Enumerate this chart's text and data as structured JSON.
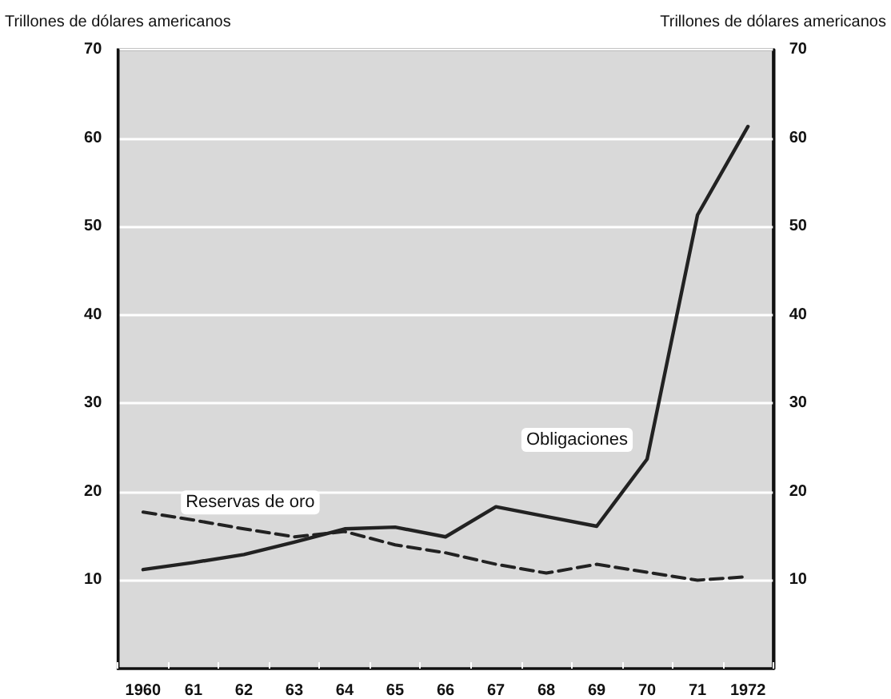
{
  "chart_data": {
    "type": "line",
    "ylabel": "Trillones de dólares americanos",
    "y2label": "Trillones de dólares americanos",
    "categories": [
      "1960",
      "61",
      "62",
      "63",
      "64",
      "65",
      "66",
      "67",
      "68",
      "69",
      "70",
      "71",
      "1972"
    ],
    "series": [
      {
        "name": "Obligaciones",
        "color": "#222222",
        "line_style": "solid",
        "values": [
          11.2,
          12,
          12.9,
          14.3,
          15.8,
          16,
          14.9,
          18.3,
          17.2,
          16.1,
          23.7,
          51.3,
          61.3
        ]
      },
      {
        "name": "Reservas de oro",
        "color": "#222222",
        "line_style": "dashed",
        "values": [
          17.7,
          16.8,
          15.8,
          14.9,
          15.5,
          14,
          13.1,
          11.8,
          10.8,
          11.8,
          10.9,
          10,
          10.4
        ]
      }
    ],
    "ylim": [
      0,
      70
    ],
    "yticks": [
      10,
      20,
      30,
      40,
      50,
      60,
      70
    ],
    "y2lim": [
      0,
      70
    ],
    "y2ticks": [
      10,
      20,
      30,
      40,
      50,
      60,
      70
    ],
    "grid": "y",
    "legend": false,
    "marker": "none"
  }
}
